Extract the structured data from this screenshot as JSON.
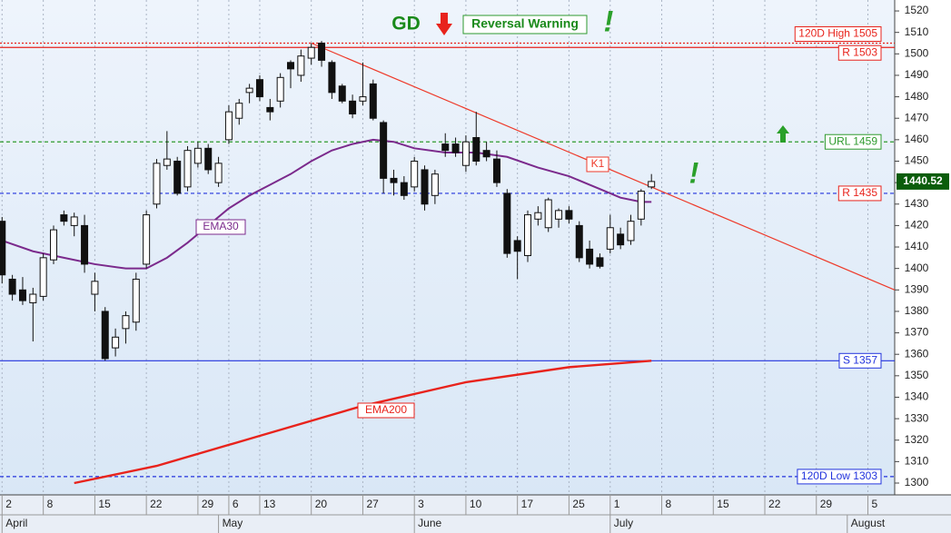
{
  "chart_data": {
    "type": "candlestick",
    "x": [
      0,
      1,
      2,
      3,
      4,
      5,
      6,
      7,
      8,
      9,
      10,
      11,
      12,
      13,
      14,
      15,
      16,
      17,
      18,
      19,
      20,
      21,
      22,
      23,
      24,
      25,
      26,
      27,
      28,
      29,
      30,
      31,
      32,
      33,
      34,
      35,
      36,
      37,
      38,
      39,
      40,
      41,
      42,
      43,
      44,
      45,
      46,
      47,
      48,
      49,
      50,
      51,
      52,
      53,
      54,
      55,
      56,
      57,
      58,
      59,
      60,
      61,
      62,
      63
    ],
    "open": [
      1422,
      1395,
      1390,
      1384,
      1387,
      1404,
      1425,
      1420,
      1420,
      1388,
      1380,
      1363,
      1372,
      1375,
      1402,
      1430,
      1448,
      1450,
      1438,
      1449,
      1456,
      1440,
      1460,
      1470,
      1482,
      1488,
      1475,
      1478,
      1496,
      1490,
      1498,
      1505,
      1496,
      1485,
      1478,
      1478,
      1486,
      1468,
      1442,
      1440,
      1438,
      1446,
      1434,
      1458,
      1458,
      1448,
      1461,
      1455,
      1451,
      1435,
      1413,
      1406,
      1423,
      1419,
      1423,
      1427,
      1420,
      1409,
      1405,
      1409,
      1416,
      1413,
      1423,
      1438
    ],
    "high": [
      1424,
      1397,
      1396,
      1391,
      1407,
      1420,
      1427,
      1426,
      1425,
      1398,
      1382,
      1372,
      1380,
      1398,
      1427,
      1451,
      1464,
      1452,
      1457,
      1459,
      1458,
      1452,
      1476,
      1479,
      1486,
      1490,
      1479,
      1491,
      1497,
      1502,
      1505,
      1506,
      1497,
      1486,
      1481,
      1496,
      1488,
      1469,
      1446,
      1443,
      1452,
      1448,
      1446,
      1463,
      1461,
      1462,
      1473,
      1459,
      1455,
      1437,
      1415,
      1427,
      1429,
      1433,
      1428,
      1429,
      1422,
      1413,
      1407,
      1425,
      1419,
      1425,
      1437,
      1444
    ],
    "low": [
      1393,
      1385,
      1383,
      1366,
      1385,
      1402,
      1420,
      1415,
      1398,
      1380,
      1357,
      1359,
      1365,
      1371,
      1400,
      1428,
      1446,
      1434,
      1436,
      1447,
      1444,
      1438,
      1458,
      1467,
      1477,
      1478,
      1469,
      1475,
      1484,
      1487,
      1495,
      1494,
      1479,
      1477,
      1470,
      1476,
      1469,
      1435,
      1434,
      1432,
      1436,
      1427,
      1430,
      1452,
      1452,
      1445,
      1448,
      1450,
      1438,
      1405,
      1395,
      1403,
      1420,
      1417,
      1419,
      1421,
      1403,
      1400,
      1400,
      1407,
      1409,
      1411,
      1420,
      1437
    ],
    "close": [
      1397,
      1388,
      1385,
      1388,
      1405,
      1418,
      1422,
      1424,
      1402,
      1394,
      1358,
      1368,
      1378,
      1395,
      1425,
      1449,
      1451,
      1435,
      1455,
      1456,
      1446,
      1449,
      1473,
      1477,
      1484,
      1480,
      1473,
      1489,
      1493,
      1499,
      1503,
      1497,
      1482,
      1478,
      1472,
      1480,
      1470,
      1442,
      1440,
      1434,
      1450,
      1430,
      1444,
      1455,
      1454,
      1459,
      1450,
      1452,
      1440,
      1407,
      1408,
      1425,
      1426,
      1432,
      1427,
      1423,
      1405,
      1402,
      1401,
      1419,
      1411,
      1422,
      1436,
      1440.52
    ],
    "last_price": 1440.52,
    "xlim": [
      -0.2,
      86.6
    ],
    "ylim": [
      1294.5,
      1525.1
    ],
    "yticks": [
      1300,
      1310,
      1320,
      1330,
      1340,
      1350,
      1360,
      1370,
      1380,
      1390,
      1400,
      1410,
      1420,
      1430,
      1440,
      1450,
      1460,
      1470,
      1480,
      1490,
      1500,
      1510,
      1520
    ],
    "xticks": [
      {
        "value": 0,
        "label": "2"
      },
      {
        "value": 4,
        "label": "8"
      },
      {
        "value": 9,
        "label": "15"
      },
      {
        "value": 14,
        "label": "22"
      },
      {
        "value": 19,
        "label": "29"
      },
      {
        "value": 22,
        "label": "6"
      },
      {
        "value": 25,
        "label": "13"
      },
      {
        "value": 30,
        "label": "20"
      },
      {
        "value": 35,
        "label": "27"
      },
      {
        "value": 40,
        "label": "3"
      },
      {
        "value": 45,
        "label": "10"
      },
      {
        "value": 50,
        "label": "17"
      },
      {
        "value": 55,
        "label": "25"
      },
      {
        "value": 59,
        "label": "1"
      },
      {
        "value": 64,
        "label": "8"
      },
      {
        "value": 69,
        "label": "15"
      },
      {
        "value": 74,
        "label": "22"
      },
      {
        "value": 79,
        "label": "29"
      },
      {
        "value": 84,
        "label": "5"
      }
    ],
    "months": [
      {
        "value": 0,
        "label": "April"
      },
      {
        "value": 21,
        "label": "May"
      },
      {
        "value": 40,
        "label": "June"
      },
      {
        "value": 59,
        "label": "July"
      },
      {
        "value": 82,
        "label": "August"
      }
    ],
    "series": [
      {
        "name": "EMA30",
        "color": "#7b2a8c",
        "x": [
          0,
          3,
          6,
          9,
          12,
          14,
          16,
          18,
          20,
          22,
          24,
          26,
          28,
          30,
          32,
          34,
          36,
          38,
          40,
          43,
          46,
          49,
          52,
          55,
          58,
          60,
          62,
          63
        ],
        "values": [
          1413,
          1408,
          1405,
          1402,
          1400,
          1400,
          1405,
          1412,
          1420,
          1428,
          1434,
          1439,
          1444,
          1450,
          1455,
          1458,
          1460,
          1459,
          1456,
          1454,
          1454,
          1452,
          1447,
          1443,
          1437,
          1433,
          1431,
          1431
        ]
      },
      {
        "name": "EMA200",
        "color": "#e8231c",
        "x": [
          7,
          15,
          25,
          35,
          45,
          55,
          63
        ],
        "values": [
          1300,
          1308,
          1322,
          1336,
          1347,
          1354,
          1357
        ]
      }
    ],
    "trendline": {
      "name": "K1",
      "color": "#ee3a2a",
      "x": [
        30,
        86.6
      ],
      "values": [
        1505,
        1390
      ]
    },
    "levels": [
      {
        "label": "120D High 1505",
        "value": 1505,
        "color": "#e8231c",
        "style": "dotted"
      },
      {
        "label": "R 1503",
        "value": 1503,
        "color": "#e8231c",
        "style": "solid"
      },
      {
        "label": "URL 1459",
        "value": 1459,
        "color": "#2e9a2e",
        "style": "dashed"
      },
      {
        "label": "R 1435",
        "value": 1435,
        "color": "#2233dd",
        "style": "dashed",
        "label_color": "#e8231c"
      },
      {
        "label": "S 1357",
        "value": 1357,
        "color": "#2233dd",
        "style": "solid"
      },
      {
        "label": "120D Low 1303",
        "value": 1303,
        "color": "#2233dd",
        "style": "dashed"
      }
    ],
    "annotations": [
      "GD",
      "Reversal Warning",
      "!",
      "!"
    ]
  }
}
